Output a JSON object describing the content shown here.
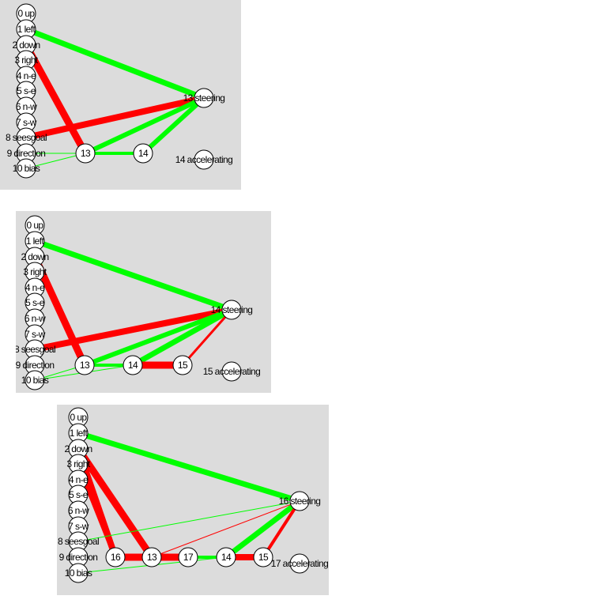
{
  "colors": {
    "positive": "#00ff00",
    "negative": "#ff0000",
    "background": "#dcdcdc"
  },
  "networks": [
    {
      "nodes": [
        {
          "id": "n0",
          "label": "0 up"
        },
        {
          "id": "n1",
          "label": "1 left"
        },
        {
          "id": "n2",
          "label": "2 down"
        },
        {
          "id": "n3",
          "label": "3 right"
        },
        {
          "id": "n4",
          "label": "4 n-e"
        },
        {
          "id": "n5",
          "label": "5 s-e"
        },
        {
          "id": "n6",
          "label": "6 n-w"
        },
        {
          "id": "n7",
          "label": "7 s-w"
        },
        {
          "id": "n8",
          "label": "8 seesgoal"
        },
        {
          "id": "n9",
          "label": "9 direction"
        },
        {
          "id": "n10",
          "label": "10 bias"
        },
        {
          "id": "h13",
          "label": "13"
        },
        {
          "id": "h14",
          "label": "14"
        },
        {
          "id": "o13",
          "label": "13 steering"
        },
        {
          "id": "o14",
          "label": "14 accelerating"
        }
      ],
      "edges": [
        {
          "from": "n1",
          "to": "o13",
          "sign": "positive",
          "weight": 7
        },
        {
          "from": "n2",
          "to": "h13",
          "sign": "negative",
          "weight": 9
        },
        {
          "from": "n8",
          "to": "o13",
          "sign": "negative",
          "weight": 8
        },
        {
          "from": "h13",
          "to": "h14",
          "sign": "positive",
          "weight": 4
        },
        {
          "from": "h13",
          "to": "o13",
          "sign": "positive",
          "weight": 6
        },
        {
          "from": "h14",
          "to": "o13",
          "sign": "positive",
          "weight": 6
        },
        {
          "from": "n10",
          "to": "h13",
          "sign": "positive",
          "weight": 1
        },
        {
          "from": "n9",
          "to": "h13",
          "sign": "positive",
          "weight": 1
        }
      ]
    },
    {
      "nodes": [
        {
          "id": "n0",
          "label": "0 up"
        },
        {
          "id": "n1",
          "label": "1 left"
        },
        {
          "id": "n2",
          "label": "2 down"
        },
        {
          "id": "n3",
          "label": "3 right"
        },
        {
          "id": "n4",
          "label": "4 n-e"
        },
        {
          "id": "n5",
          "label": "5 s-e"
        },
        {
          "id": "n6",
          "label": "6 n-w"
        },
        {
          "id": "n7",
          "label": "7 s-w"
        },
        {
          "id": "n8",
          "label": "8 seesgoal"
        },
        {
          "id": "n9",
          "label": "9 direction"
        },
        {
          "id": "n10",
          "label": "10 bias"
        },
        {
          "id": "h13",
          "label": "13"
        },
        {
          "id": "h14",
          "label": "14"
        },
        {
          "id": "h15",
          "label": "15"
        },
        {
          "id": "o14",
          "label": "14 steering"
        },
        {
          "id": "o15",
          "label": "15 accelerating"
        }
      ],
      "edges": [
        {
          "from": "n1",
          "to": "o14",
          "sign": "positive",
          "weight": 7
        },
        {
          "from": "n2",
          "to": "h13",
          "sign": "negative",
          "weight": 9
        },
        {
          "from": "n8",
          "to": "o14",
          "sign": "negative",
          "weight": 8
        },
        {
          "from": "h13",
          "to": "o14",
          "sign": "positive",
          "weight": 6
        },
        {
          "from": "h14",
          "to": "o14",
          "sign": "positive",
          "weight": 7
        },
        {
          "from": "h14",
          "to": "h15",
          "sign": "negative",
          "weight": 9
        },
        {
          "from": "h13",
          "to": "h14",
          "sign": "positive",
          "weight": 4
        },
        {
          "from": "h15",
          "to": "o14",
          "sign": "negative",
          "weight": 3
        },
        {
          "from": "n10",
          "to": "h13",
          "sign": "positive",
          "weight": 1
        },
        {
          "from": "n10",
          "to": "h14",
          "sign": "positive",
          "weight": 1
        }
      ]
    },
    {
      "nodes": [
        {
          "id": "n0",
          "label": "0 up"
        },
        {
          "id": "n1",
          "label": "1 left"
        },
        {
          "id": "n2",
          "label": "2 down"
        },
        {
          "id": "n3",
          "label": "3 right"
        },
        {
          "id": "n4",
          "label": "4 n-e"
        },
        {
          "id": "n5",
          "label": "5 s-e"
        },
        {
          "id": "n6",
          "label": "6 n-w"
        },
        {
          "id": "n7",
          "label": "7 s-w"
        },
        {
          "id": "n8",
          "label": "8 seesgoal"
        },
        {
          "id": "n9",
          "label": "9 direction"
        },
        {
          "id": "n10",
          "label": "10 bias"
        },
        {
          "id": "h16",
          "label": "16"
        },
        {
          "id": "h13",
          "label": "13"
        },
        {
          "id": "h17",
          "label": "17"
        },
        {
          "id": "h14",
          "label": "14"
        },
        {
          "id": "h15",
          "label": "15"
        },
        {
          "id": "o16",
          "label": "16 steering"
        },
        {
          "id": "o17",
          "label": "17 accelerating"
        }
      ],
      "edges": [
        {
          "from": "n1",
          "to": "o16",
          "sign": "positive",
          "weight": 7
        },
        {
          "from": "n2",
          "to": "h16",
          "sign": "negative",
          "weight": 8
        },
        {
          "from": "n2",
          "to": "h13",
          "sign": "negative",
          "weight": 9
        },
        {
          "from": "n3",
          "to": "h16",
          "sign": "negative",
          "weight": 6
        },
        {
          "from": "h16",
          "to": "h17",
          "sign": "negative",
          "weight": 9
        },
        {
          "from": "h14",
          "to": "h15",
          "sign": "negative",
          "weight": 8
        },
        {
          "from": "h17",
          "to": "h14",
          "sign": "positive",
          "weight": 4
        },
        {
          "from": "h14",
          "to": "o16",
          "sign": "positive",
          "weight": 7
        },
        {
          "from": "h15",
          "to": "o16",
          "sign": "negative",
          "weight": 4
        },
        {
          "from": "n8",
          "to": "o16",
          "sign": "positive",
          "weight": 1
        },
        {
          "from": "h13",
          "to": "o16",
          "sign": "negative",
          "weight": 1
        },
        {
          "from": "n10",
          "to": "h14",
          "sign": "positive",
          "weight": 1
        }
      ]
    }
  ]
}
